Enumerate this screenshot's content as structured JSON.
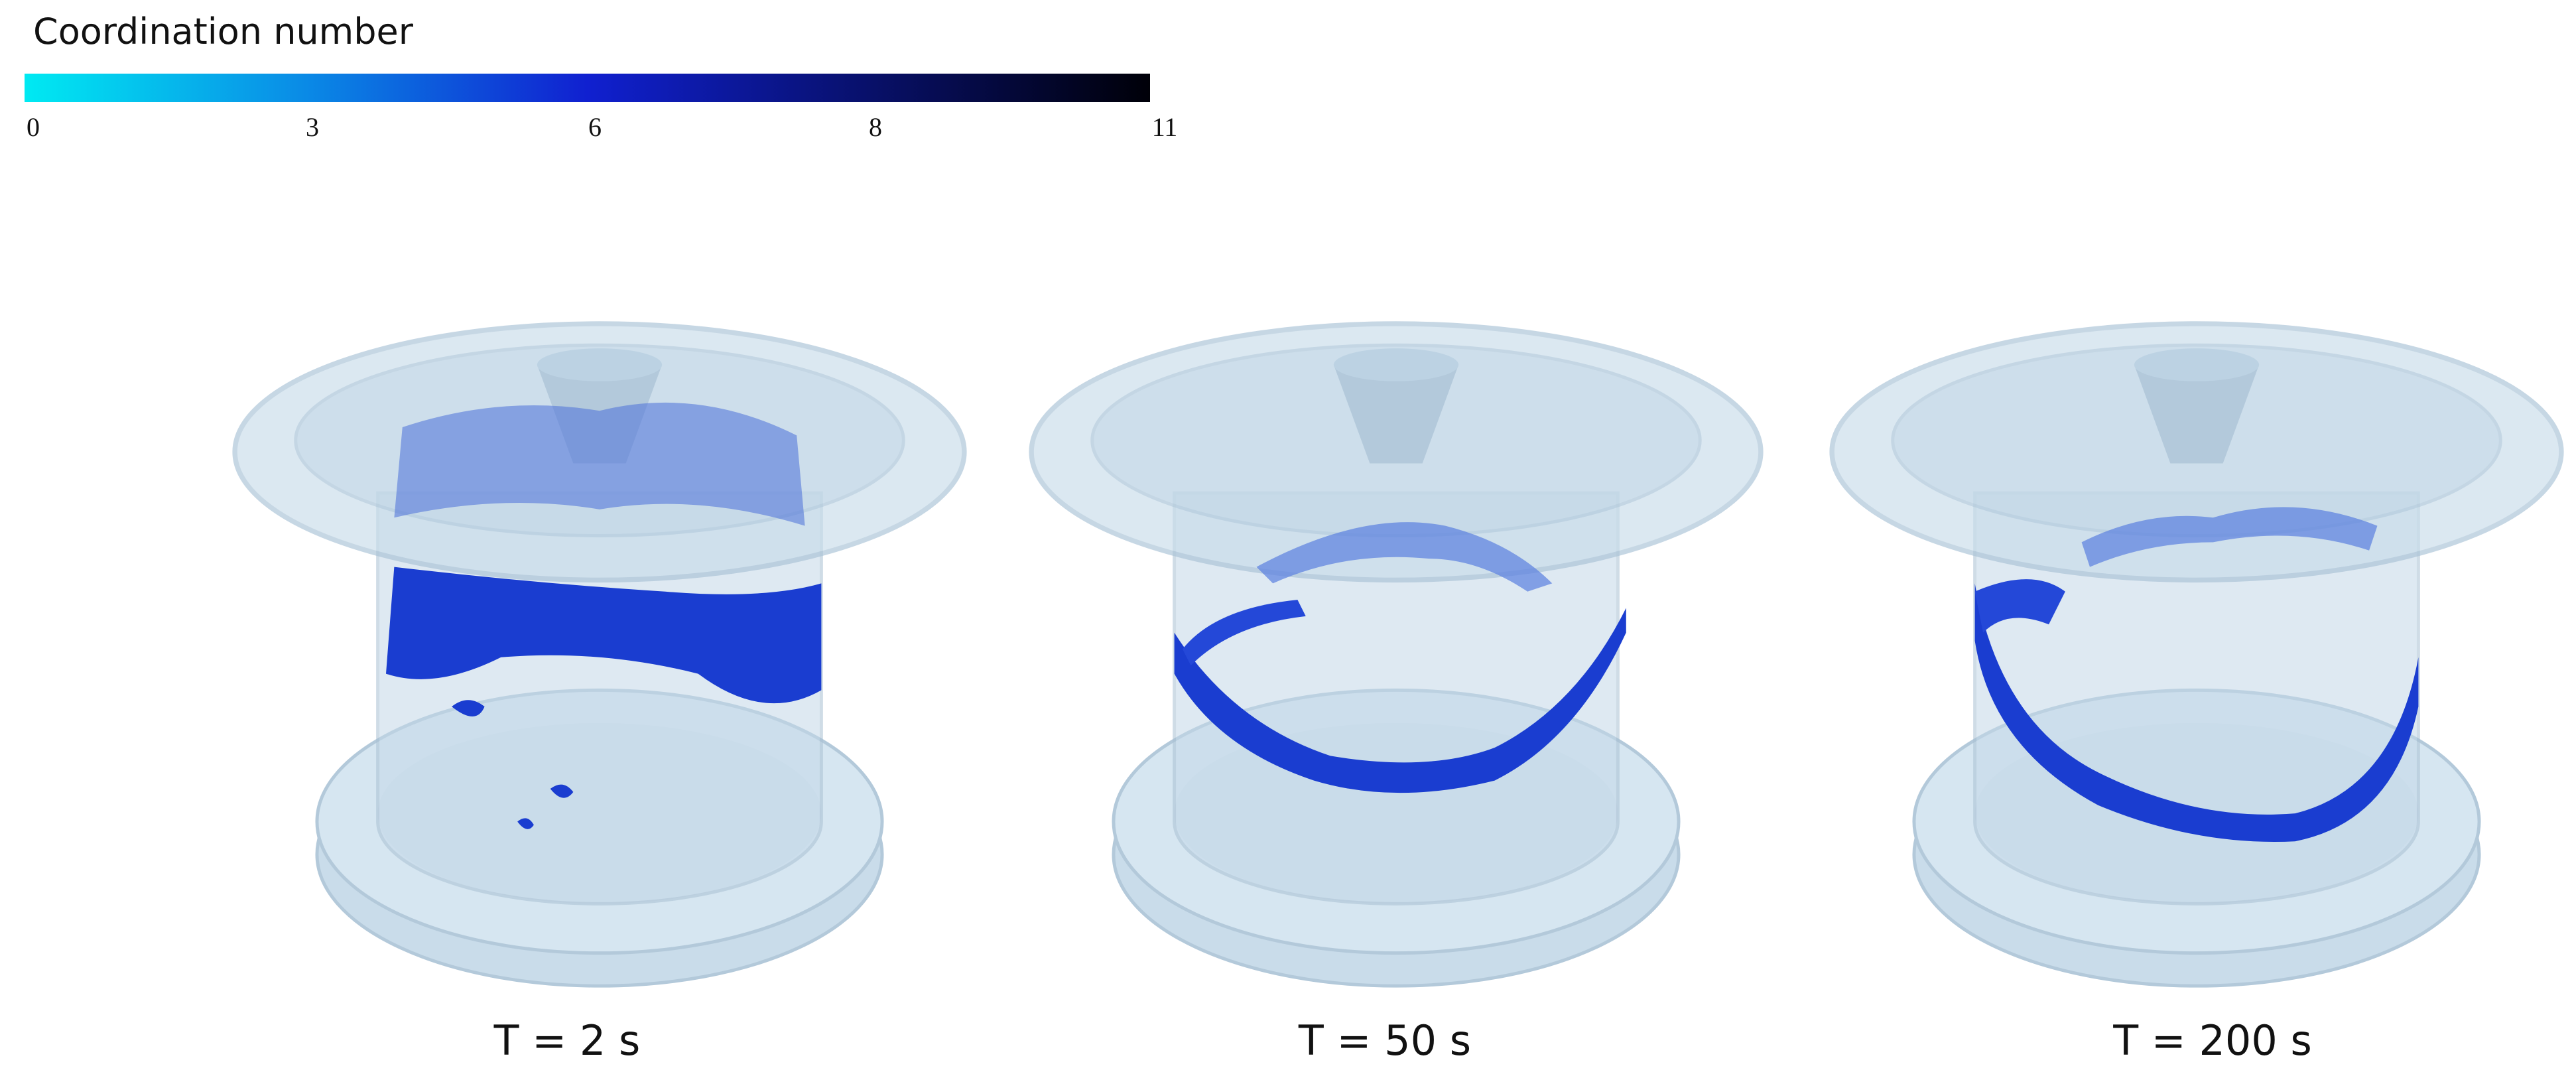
{
  "colorbar": {
    "title": "Coordination number",
    "ticks": [
      0,
      3,
      6,
      8,
      11
    ]
  },
  "panels": [
    {
      "label": "T = 2 s"
    },
    {
      "label": "T = 50 s"
    },
    {
      "label": "T = 200 s"
    }
  ]
}
